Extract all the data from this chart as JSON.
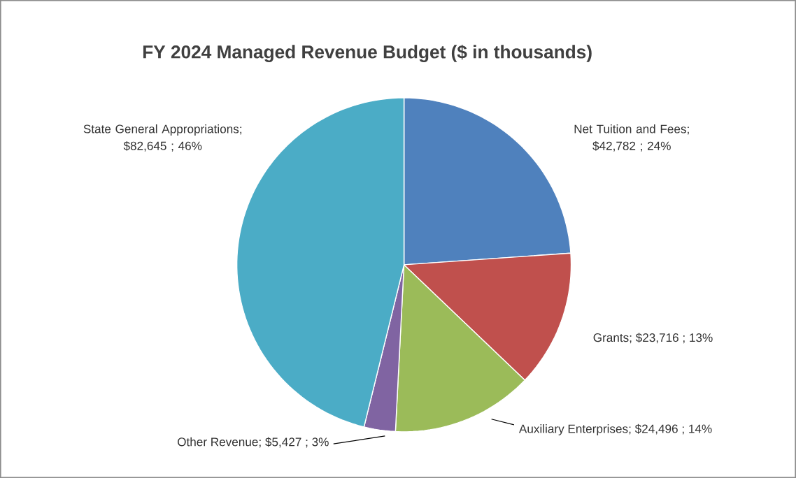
{
  "chart_data": {
    "type": "pie",
    "title": "FY 2024 Managed Revenue Budget ($ in thousands)",
    "categories": [
      "Net Tuition and Fees",
      "Grants",
      "Auxiliary Enterprises",
      "Other Revenue",
      "State General Appropriations"
    ],
    "values": [
      42782,
      23716,
      24496,
      5427,
      82645
    ],
    "value_labels": [
      "; $42,782 ; 24%",
      ";  $23,716 ; 13%",
      ";  $24,496 ; 14%",
      ";  $5,427 ; 3%",
      "; $82,645 ; 46%"
    ],
    "colors": [
      "#4f81bd",
      "#c0504d",
      "#9bbb59",
      "#8064a2",
      "#4bacc6"
    ]
  }
}
